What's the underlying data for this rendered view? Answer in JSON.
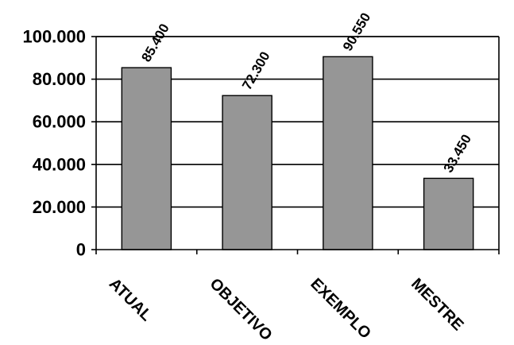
{
  "chart_data": {
    "type": "bar",
    "categories": [
      "ATUAL",
      "OBJETIVO",
      "EXEMPLO",
      "MESTRE"
    ],
    "values": [
      85400,
      72300,
      90550,
      33450
    ],
    "data_labels": [
      "85.400",
      "72.300",
      "90.550",
      "33.450"
    ],
    "title": "",
    "xlabel": "",
    "ylabel": "",
    "ylim": [
      0,
      100000
    ],
    "yticks": [
      0,
      20000,
      40000,
      60000,
      80000,
      100000
    ],
    "ytick_labels": [
      "0",
      "20.000",
      "40.000",
      "60.000",
      "80.000",
      "100.000"
    ],
    "grid": true,
    "legend": false,
    "bar_color": "#969696",
    "bar_edge_color": "#000000"
  }
}
